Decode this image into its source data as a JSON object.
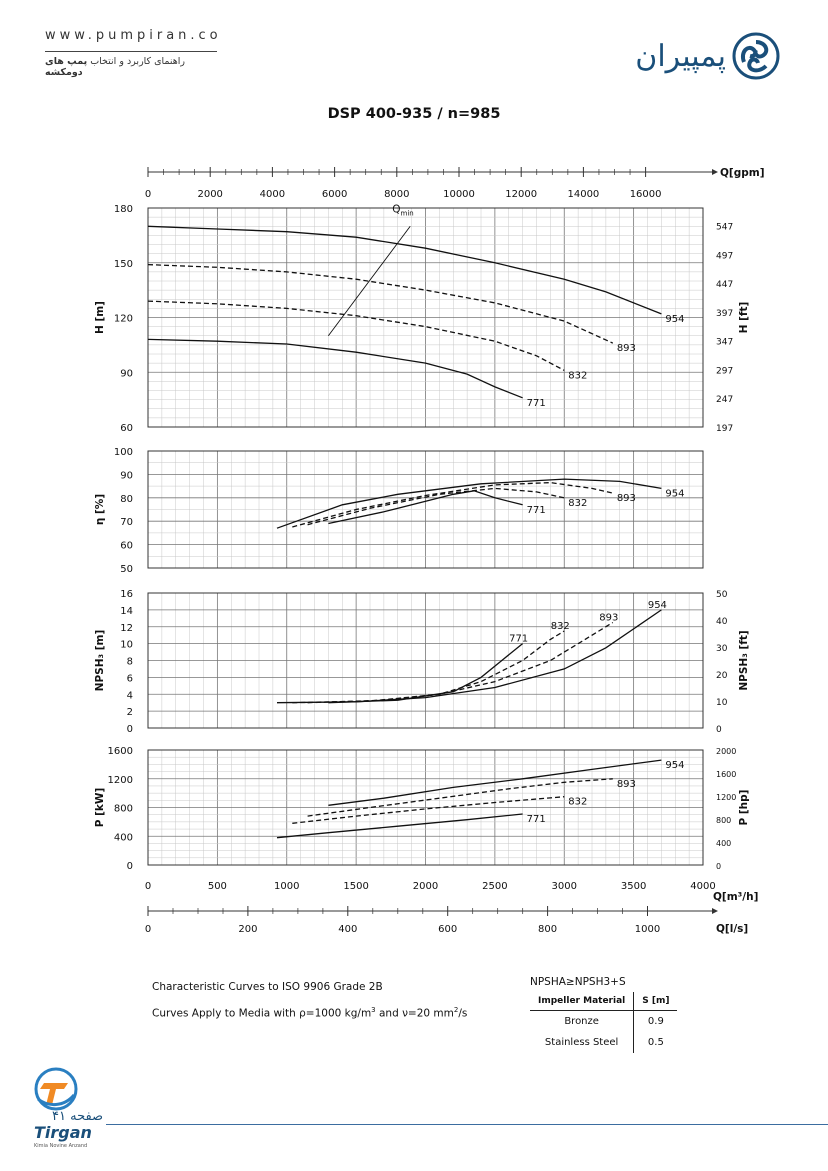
{
  "header": {
    "website": "www.pumpiran.co",
    "subtitle_prefix": "راهنمای کاربرد و انتخاب",
    "subtitle_bold": "پمپ های دومکشه",
    "brand_name": "پمپیران",
    "brand_color": "#1a4f7a",
    "logo_icon": "pumpiran-swirl-logo"
  },
  "page_title": "DSP 400-935 / n=985",
  "chart_data": {
    "type": "line",
    "x_flow": {
      "label": "Q[m³/h]",
      "range": [
        0,
        4000
      ],
      "ticks": [
        "0",
        "500",
        "1000",
        "1500",
        "2000",
        "2500",
        "3000",
        "3500",
        "4000"
      ]
    },
    "x_gpm": {
      "label": "Q[gpm]",
      "ticks": [
        "0",
        "2000",
        "4000",
        "6000",
        "8000",
        "10000",
        "12000",
        "14000",
        "16000"
      ]
    },
    "x_ls": {
      "label": "Q[l/s]",
      "ticks": [
        "0",
        "200",
        "400",
        "600",
        "800",
        "1000"
      ]
    },
    "impellers": [
      "954",
      "893",
      "832",
      "771"
    ],
    "qmin_label": "Q",
    "qmin_subscript": "min",
    "head": {
      "ylabel": "H [m]",
      "ylabel_right": "H [ft]",
      "ylim": [
        60,
        180
      ],
      "ticks": [
        "60",
        "90",
        "120",
        "150",
        "180"
      ],
      "ticks_right": [
        "197",
        "247",
        "297",
        "347",
        "397",
        "447",
        "497",
        "547"
      ],
      "qmin_line": [
        [
          1300,
          110
        ],
        [
          1890,
          170
        ]
      ],
      "series": [
        {
          "name": "954",
          "dash": false,
          "points": [
            [
              0,
              170
            ],
            [
              500,
              168.5
            ],
            [
              1000,
              167
            ],
            [
              1500,
              164
            ],
            [
              2000,
              158
            ],
            [
              2500,
              150
            ],
            [
              3000,
              141
            ],
            [
              3300,
              134
            ],
            [
              3700,
              122
            ]
          ]
        },
        {
          "name": "893",
          "dash": true,
          "points": [
            [
              0,
              149
            ],
            [
              500,
              147.5
            ],
            [
              1000,
              145
            ],
            [
              1500,
              141
            ],
            [
              2000,
              135
            ],
            [
              2500,
              128
            ],
            [
              3000,
              118
            ],
            [
              3350,
              106
            ]
          ]
        },
        {
          "name": "832",
          "dash": true,
          "points": [
            [
              0,
              129
            ],
            [
              500,
              127.5
            ],
            [
              1000,
              125
            ],
            [
              1500,
              121
            ],
            [
              2000,
              115
            ],
            [
              2500,
              107
            ],
            [
              2800,
              99
            ],
            [
              3000,
              91
            ]
          ]
        },
        {
          "name": "771",
          "dash": false,
          "points": [
            [
              0,
              108
            ],
            [
              500,
              107
            ],
            [
              1000,
              105.5
            ],
            [
              1500,
              101
            ],
            [
              2000,
              95
            ],
            [
              2300,
              89
            ],
            [
              2500,
              82
            ],
            [
              2700,
              76
            ]
          ]
        }
      ]
    },
    "efficiency": {
      "ylabel": "η [%]",
      "ylim": [
        50,
        100
      ],
      "ticks": [
        "50",
        "60",
        "70",
        "80",
        "90",
        "100"
      ],
      "series": [
        {
          "name": "954",
          "dash": false,
          "points": [
            [
              930,
              67
            ],
            [
              1400,
              77
            ],
            [
              1800,
              81.5
            ],
            [
              2400,
              86
            ],
            [
              3000,
              88
            ],
            [
              3400,
              87
            ],
            [
              3700,
              84
            ]
          ]
        },
        {
          "name": "893",
          "dash": true,
          "points": [
            [
              1040,
              67.5
            ],
            [
              1500,
              75
            ],
            [
              2000,
              81
            ],
            [
              2500,
              85.5
            ],
            [
              2900,
              86.5
            ],
            [
              3200,
              84
            ],
            [
              3350,
              82
            ]
          ]
        },
        {
          "name": "832",
          "dash": true,
          "points": [
            [
              1150,
              68.5
            ],
            [
              1600,
              75.5
            ],
            [
              2100,
              81.5
            ],
            [
              2500,
              84
            ],
            [
              2800,
              82.5
            ],
            [
              3000,
              80
            ]
          ]
        },
        {
          "name": "771",
          "dash": false,
          "points": [
            [
              1300,
              69
            ],
            [
              1700,
              74
            ],
            [
              2200,
              81.5
            ],
            [
              2350,
              83
            ],
            [
              2500,
              80
            ],
            [
              2700,
              77
            ]
          ]
        }
      ]
    },
    "npsh": {
      "ylabel": "NPSH₃ [m]",
      "ylabel_right": "NPSH₃ [ft]",
      "ylim": [
        0,
        16
      ],
      "ticks": [
        "0",
        "2",
        "4",
        "6",
        "8",
        "10",
        "12",
        "14",
        "16"
      ],
      "ticks_right": [
        "0",
        "10",
        "20",
        "30",
        "40",
        "50"
      ],
      "series": [
        {
          "name": "954",
          "dash": false,
          "points": [
            [
              930,
              3
            ],
            [
              1500,
              3.1
            ],
            [
              2000,
              3.6
            ],
            [
              2500,
              4.8
            ],
            [
              3000,
              7
            ],
            [
              3300,
              9.5
            ],
            [
              3700,
              14
            ]
          ]
        },
        {
          "name": "893",
          "dash": true,
          "points": [
            [
              1040,
              3
            ],
            [
              1600,
              3.2
            ],
            [
              2100,
              4
            ],
            [
              2500,
              5.5
            ],
            [
              2900,
              8
            ],
            [
              3150,
              10.5
            ],
            [
              3350,
              12.5
            ]
          ]
        },
        {
          "name": "832",
          "dash": true,
          "points": [
            [
              1150,
              3
            ],
            [
              1700,
              3.3
            ],
            [
              2100,
              4
            ],
            [
              2400,
              5.5
            ],
            [
              2700,
              8
            ],
            [
              2900,
              10.5
            ],
            [
              3000,
              11.5
            ]
          ]
        },
        {
          "name": "771",
          "dash": false,
          "points": [
            [
              1300,
              3
            ],
            [
              1800,
              3.3
            ],
            [
              2200,
              4.3
            ],
            [
              2400,
              6
            ],
            [
              2550,
              8
            ],
            [
              2700,
              10
            ]
          ]
        }
      ]
    },
    "power": {
      "ylabel": "P [kW]",
      "ylabel_right": "P [hp]",
      "ylim": [
        0,
        1600
      ],
      "ticks": [
        "0",
        "400",
        "800",
        "1200",
        "1600"
      ],
      "ticks_right": [
        "0",
        "400",
        "800",
        "1200",
        "1600",
        "2000"
      ],
      "series": [
        {
          "name": "954",
          "dash": false,
          "points": [
            [
              1300,
              830
            ],
            [
              1700,
              930
            ],
            [
              2200,
              1080
            ],
            [
              2700,
              1200
            ],
            [
              3200,
              1330
            ],
            [
              3700,
              1460
            ]
          ]
        },
        {
          "name": "893",
          "dash": true,
          "points": [
            [
              1150,
              680
            ],
            [
              1600,
              800
            ],
            [
              2100,
              930
            ],
            [
              2600,
              1060
            ],
            [
              3000,
              1150
            ],
            [
              3350,
              1200
            ]
          ]
        },
        {
          "name": "832",
          "dash": true,
          "points": [
            [
              1040,
              580
            ],
            [
              1500,
              680
            ],
            [
              2000,
              780
            ],
            [
              2500,
              870
            ],
            [
              3000,
              950
            ]
          ]
        },
        {
          "name": "771",
          "dash": false,
          "points": [
            [
              930,
              380
            ],
            [
              1300,
              450
            ],
            [
              1800,
              540
            ],
            [
              2300,
              630
            ],
            [
              2700,
              710
            ]
          ]
        }
      ]
    }
  },
  "footnotes": {
    "line1": "Characteristic Curves to ISO 9906 Grade 2B",
    "line2_prefix": "Curves Apply to Media with  ρ=1000 kg/m",
    "line2_mid": " and ν=20 mm",
    "line2_suffix": "/s",
    "npsh_rule": "NPSHA≥NPSH3+S",
    "table_headers": [
      "Impeller Material",
      "S [m]"
    ],
    "table_rows": [
      [
        "Bronze",
        "0.9"
      ],
      [
        "Stainless Steel",
        "0.5"
      ]
    ]
  },
  "footer": {
    "page_label": "صفحه ۴۱",
    "company": "Tirgan",
    "company_tagline": "Kimia Novine Anzand",
    "accent_color": "#3b6da0"
  }
}
